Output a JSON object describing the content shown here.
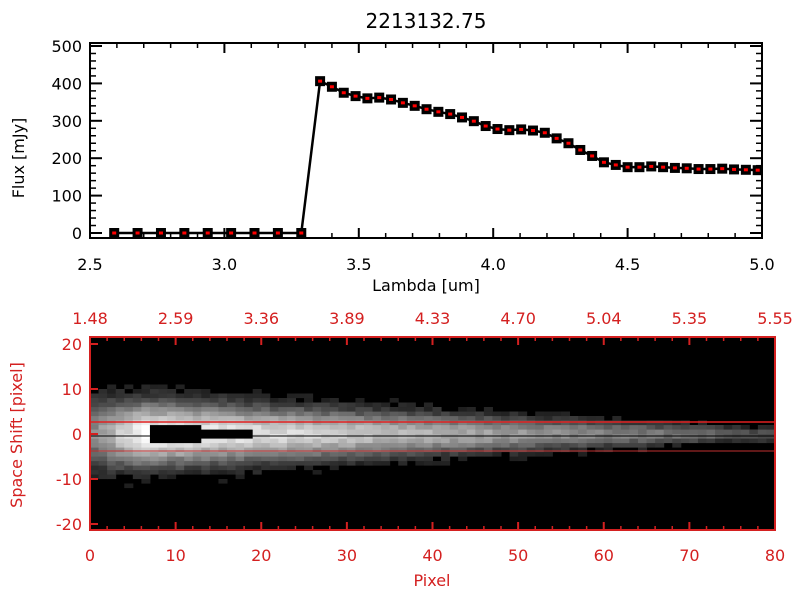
{
  "chart_data": [
    {
      "type": "line",
      "title": "2213132.75",
      "xlabel": "Lambda [um]",
      "ylabel": "Flux [mJy]",
      "xlim": [
        2.5,
        5.0
      ],
      "ylim": [
        0,
        500
      ],
      "xticks": [
        "2.5",
        "3.0",
        "3.5",
        "4.0",
        "4.5",
        "5.0"
      ],
      "xtick_values": [
        2.5,
        3.0,
        3.5,
        4.0,
        4.5,
        5.0
      ],
      "yticks": [
        "0",
        "100",
        "200",
        "300",
        "400",
        "500"
      ],
      "ytick_values": [
        0,
        100,
        200,
        300,
        400,
        500
      ],
      "series": [
        {
          "name": "flux",
          "x": [
            2.59,
            2.677,
            2.764,
            2.851,
            2.938,
            3.025,
            3.112,
            3.199,
            3.286,
            3.356,
            3.4,
            3.444,
            3.488,
            3.532,
            3.576,
            3.62,
            3.664,
            3.708,
            3.752,
            3.796,
            3.84,
            3.884,
            3.928,
            3.972,
            4.016,
            4.06,
            4.104,
            4.148,
            4.192,
            4.236,
            4.28,
            4.324,
            4.368,
            4.412,
            4.456,
            4.5,
            4.544,
            4.588,
            4.632,
            4.676,
            4.72,
            4.764,
            4.808,
            4.852,
            4.896,
            4.94,
            4.984
          ],
          "y": [
            0,
            0,
            0,
            0,
            0,
            0,
            0,
            0,
            0,
            406,
            391,
            375,
            366,
            360,
            362,
            357,
            348,
            340,
            331,
            324,
            318,
            309,
            299,
            286,
            278,
            275,
            277,
            274,
            268,
            253,
            240,
            222,
            206,
            189,
            182,
            176,
            176,
            178,
            176,
            174,
            173,
            171,
            171,
            172,
            170,
            169,
            168
          ]
        }
      ]
    },
    {
      "type": "heatmap",
      "xlabel": "Pixel",
      "ylabel": "Space Shift [pixel]",
      "xlim": [
        0,
        80
      ],
      "ylim": [
        -21,
        21
      ],
      "xticks": [
        "0",
        "10",
        "20",
        "30",
        "40",
        "50",
        "60",
        "70",
        "80"
      ],
      "xtick_values": [
        0,
        10,
        20,
        30,
        40,
        50,
        60,
        70,
        80
      ],
      "yticks": [
        "20",
        "10",
        "0",
        "-10",
        "-20"
      ],
      "ytick_values": [
        20,
        10,
        0,
        -10,
        -20
      ],
      "top_ticks": [
        "1.48",
        "2.59",
        "3.36",
        "3.89",
        "4.33",
        "4.70",
        "5.04",
        "5.35",
        "5.55"
      ],
      "extraction_aperture": [
        -3,
        3
      ],
      "trace_center": 0
    }
  ],
  "colors": {
    "axis_red": "#d42020",
    "marker_red": "#ff0000"
  }
}
